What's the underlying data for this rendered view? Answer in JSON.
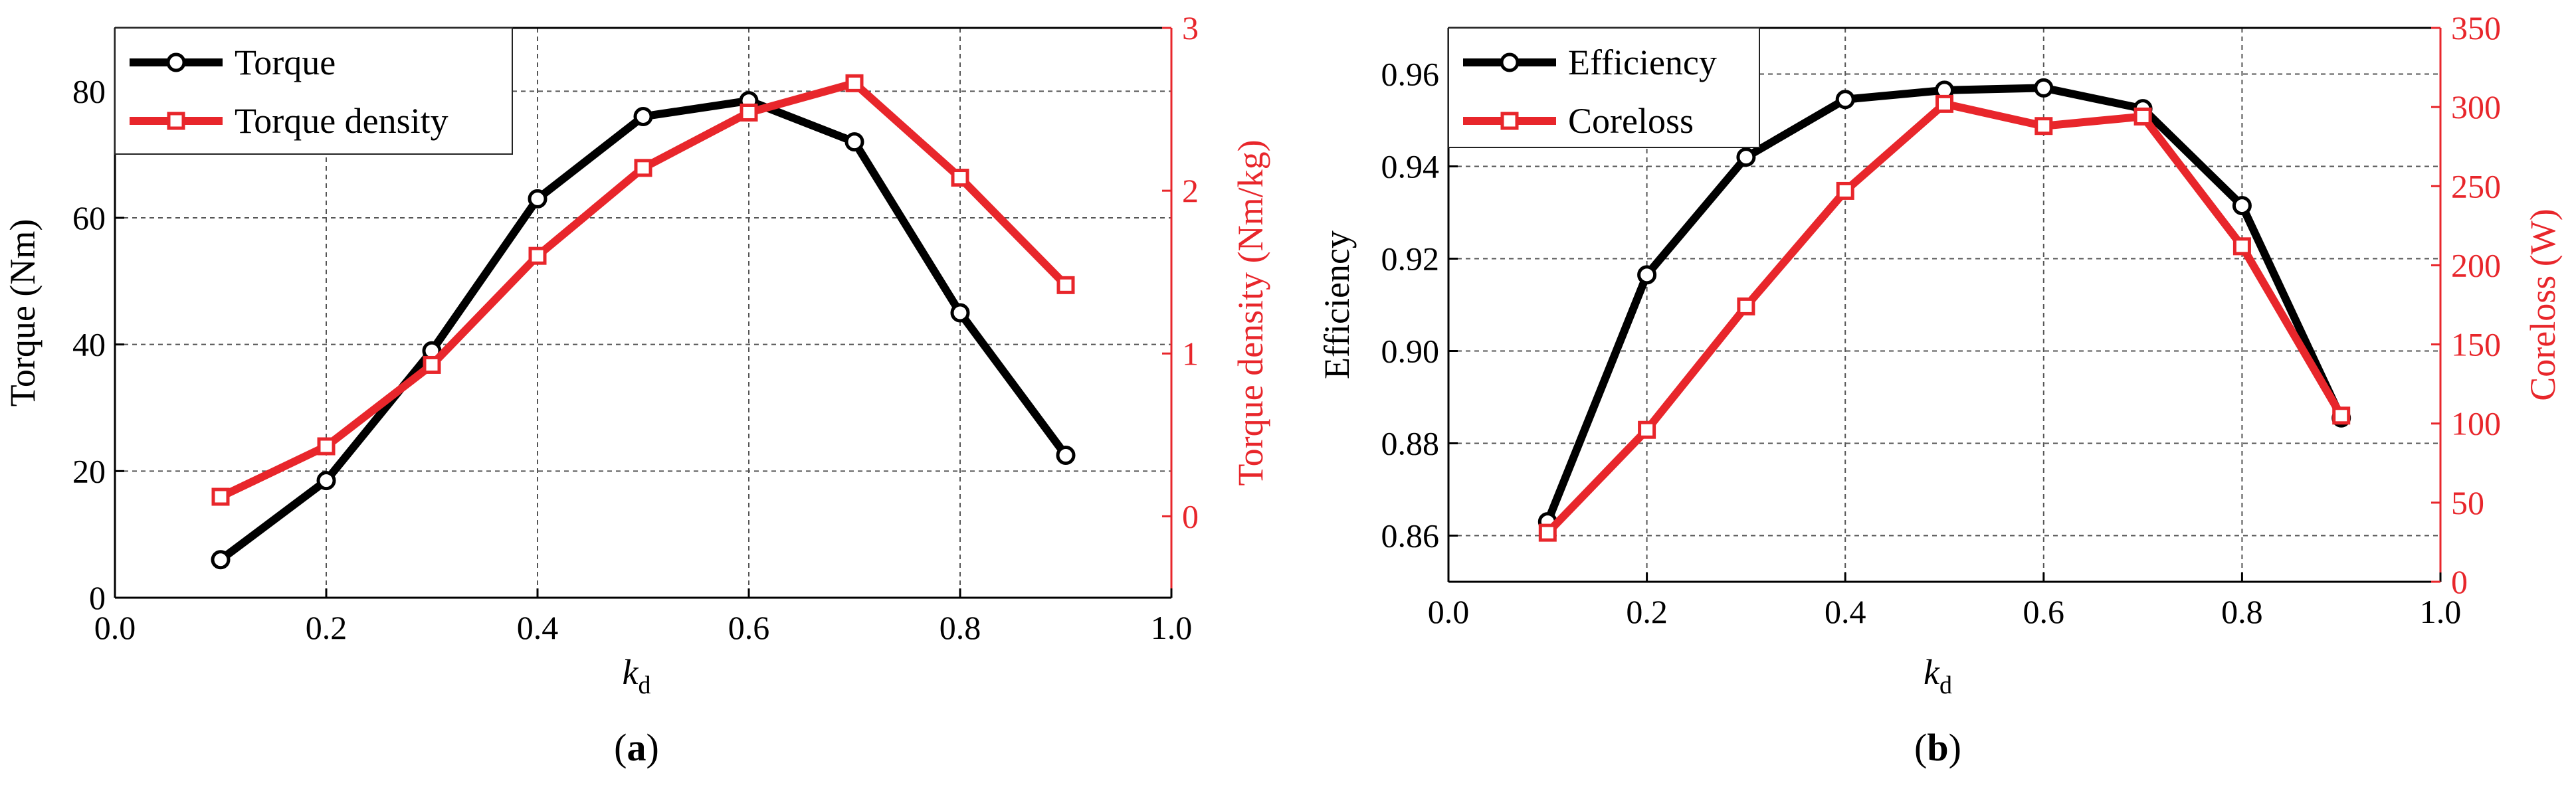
{
  "chart_data": [
    {
      "panel": "(a)",
      "caption_letter": "a",
      "type": "line",
      "x": [
        0.1,
        0.2,
        0.3,
        0.4,
        0.5,
        0.6,
        0.7,
        0.8,
        0.9
      ],
      "xlabel": "k",
      "xlabel_sub": "d",
      "xlim": [
        0.0,
        1.0
      ],
      "x_ticks": [
        0.0,
        0.2,
        0.4,
        0.6,
        0.8,
        1.0
      ],
      "x_tick_labels": [
        "0.0",
        "0.2",
        "0.4",
        "0.6",
        "0.8",
        "1.0"
      ],
      "left_axis": {
        "label": "Torque (Nm)",
        "lim": [
          0,
          90
        ],
        "ticks": [
          0,
          20,
          40,
          60,
          80
        ],
        "tick_labels": [
          "0",
          "20",
          "40",
          "60",
          "80"
        ],
        "color": "#000000"
      },
      "right_axis": {
        "label": "Torque density (Nm/kg)",
        "lim": [
          -0.5,
          3
        ],
        "ticks": [
          0,
          1,
          2,
          3
        ],
        "tick_labels": [
          "0",
          "1",
          "2",
          "3"
        ],
        "color": "#e8262b"
      },
      "series": [
        {
          "name": "Torque",
          "axis": "left",
          "marker": "circle",
          "color": "#000000",
          "values": [
            6,
            18.5,
            39,
            63,
            76,
            78.5,
            72,
            45,
            22.5
          ]
        },
        {
          "name": "Torque density",
          "axis": "right",
          "marker": "square",
          "color": "#e8262b",
          "values": [
            0.12,
            0.43,
            0.93,
            1.6,
            2.14,
            2.48,
            2.66,
            2.08,
            1.42
          ]
        }
      ],
      "grid": true,
      "legend": "top-left"
    },
    {
      "panel": "(b)",
      "caption_letter": "b",
      "type": "line",
      "x": [
        0.1,
        0.2,
        0.3,
        0.4,
        0.5,
        0.6,
        0.7,
        0.8,
        0.9
      ],
      "xlabel": "k",
      "xlabel_sub": "d",
      "xlim": [
        0.0,
        1.0
      ],
      "x_ticks": [
        0.0,
        0.2,
        0.4,
        0.6,
        0.8,
        1.0
      ],
      "x_tick_labels": [
        "0.0",
        "0.2",
        "0.4",
        "0.6",
        "0.8",
        "1.0"
      ],
      "left_axis": {
        "label": "Efficiency",
        "lim": [
          0.85,
          0.97
        ],
        "ticks": [
          0.86,
          0.88,
          0.9,
          0.92,
          0.94,
          0.96
        ],
        "tick_labels": [
          "0.86",
          "0.88",
          "0.90",
          "0.92",
          "0.94",
          "0.96"
        ],
        "color": "#000000"
      },
      "right_axis": {
        "label": "Coreloss (W)",
        "lim": [
          0,
          350
        ],
        "ticks": [
          0,
          50,
          100,
          150,
          200,
          250,
          300,
          350
        ],
        "tick_labels": [
          "0",
          "50",
          "100",
          "150",
          "200",
          "250",
          "300",
          "350"
        ],
        "color": "#e8262b"
      },
      "series": [
        {
          "name": "Efficiency",
          "axis": "left",
          "marker": "circle",
          "color": "#000000",
          "values": [
            0.863,
            0.9165,
            0.942,
            0.9545,
            0.9565,
            0.957,
            0.9525,
            0.9315,
            0.8855
          ]
        },
        {
          "name": "Coreloss",
          "axis": "right",
          "marker": "square",
          "color": "#e8262b",
          "values": [
            31,
            96,
            174,
            247,
            302,
            288,
            294,
            212,
            105
          ]
        }
      ],
      "grid": true,
      "legend": "top-left"
    }
  ]
}
